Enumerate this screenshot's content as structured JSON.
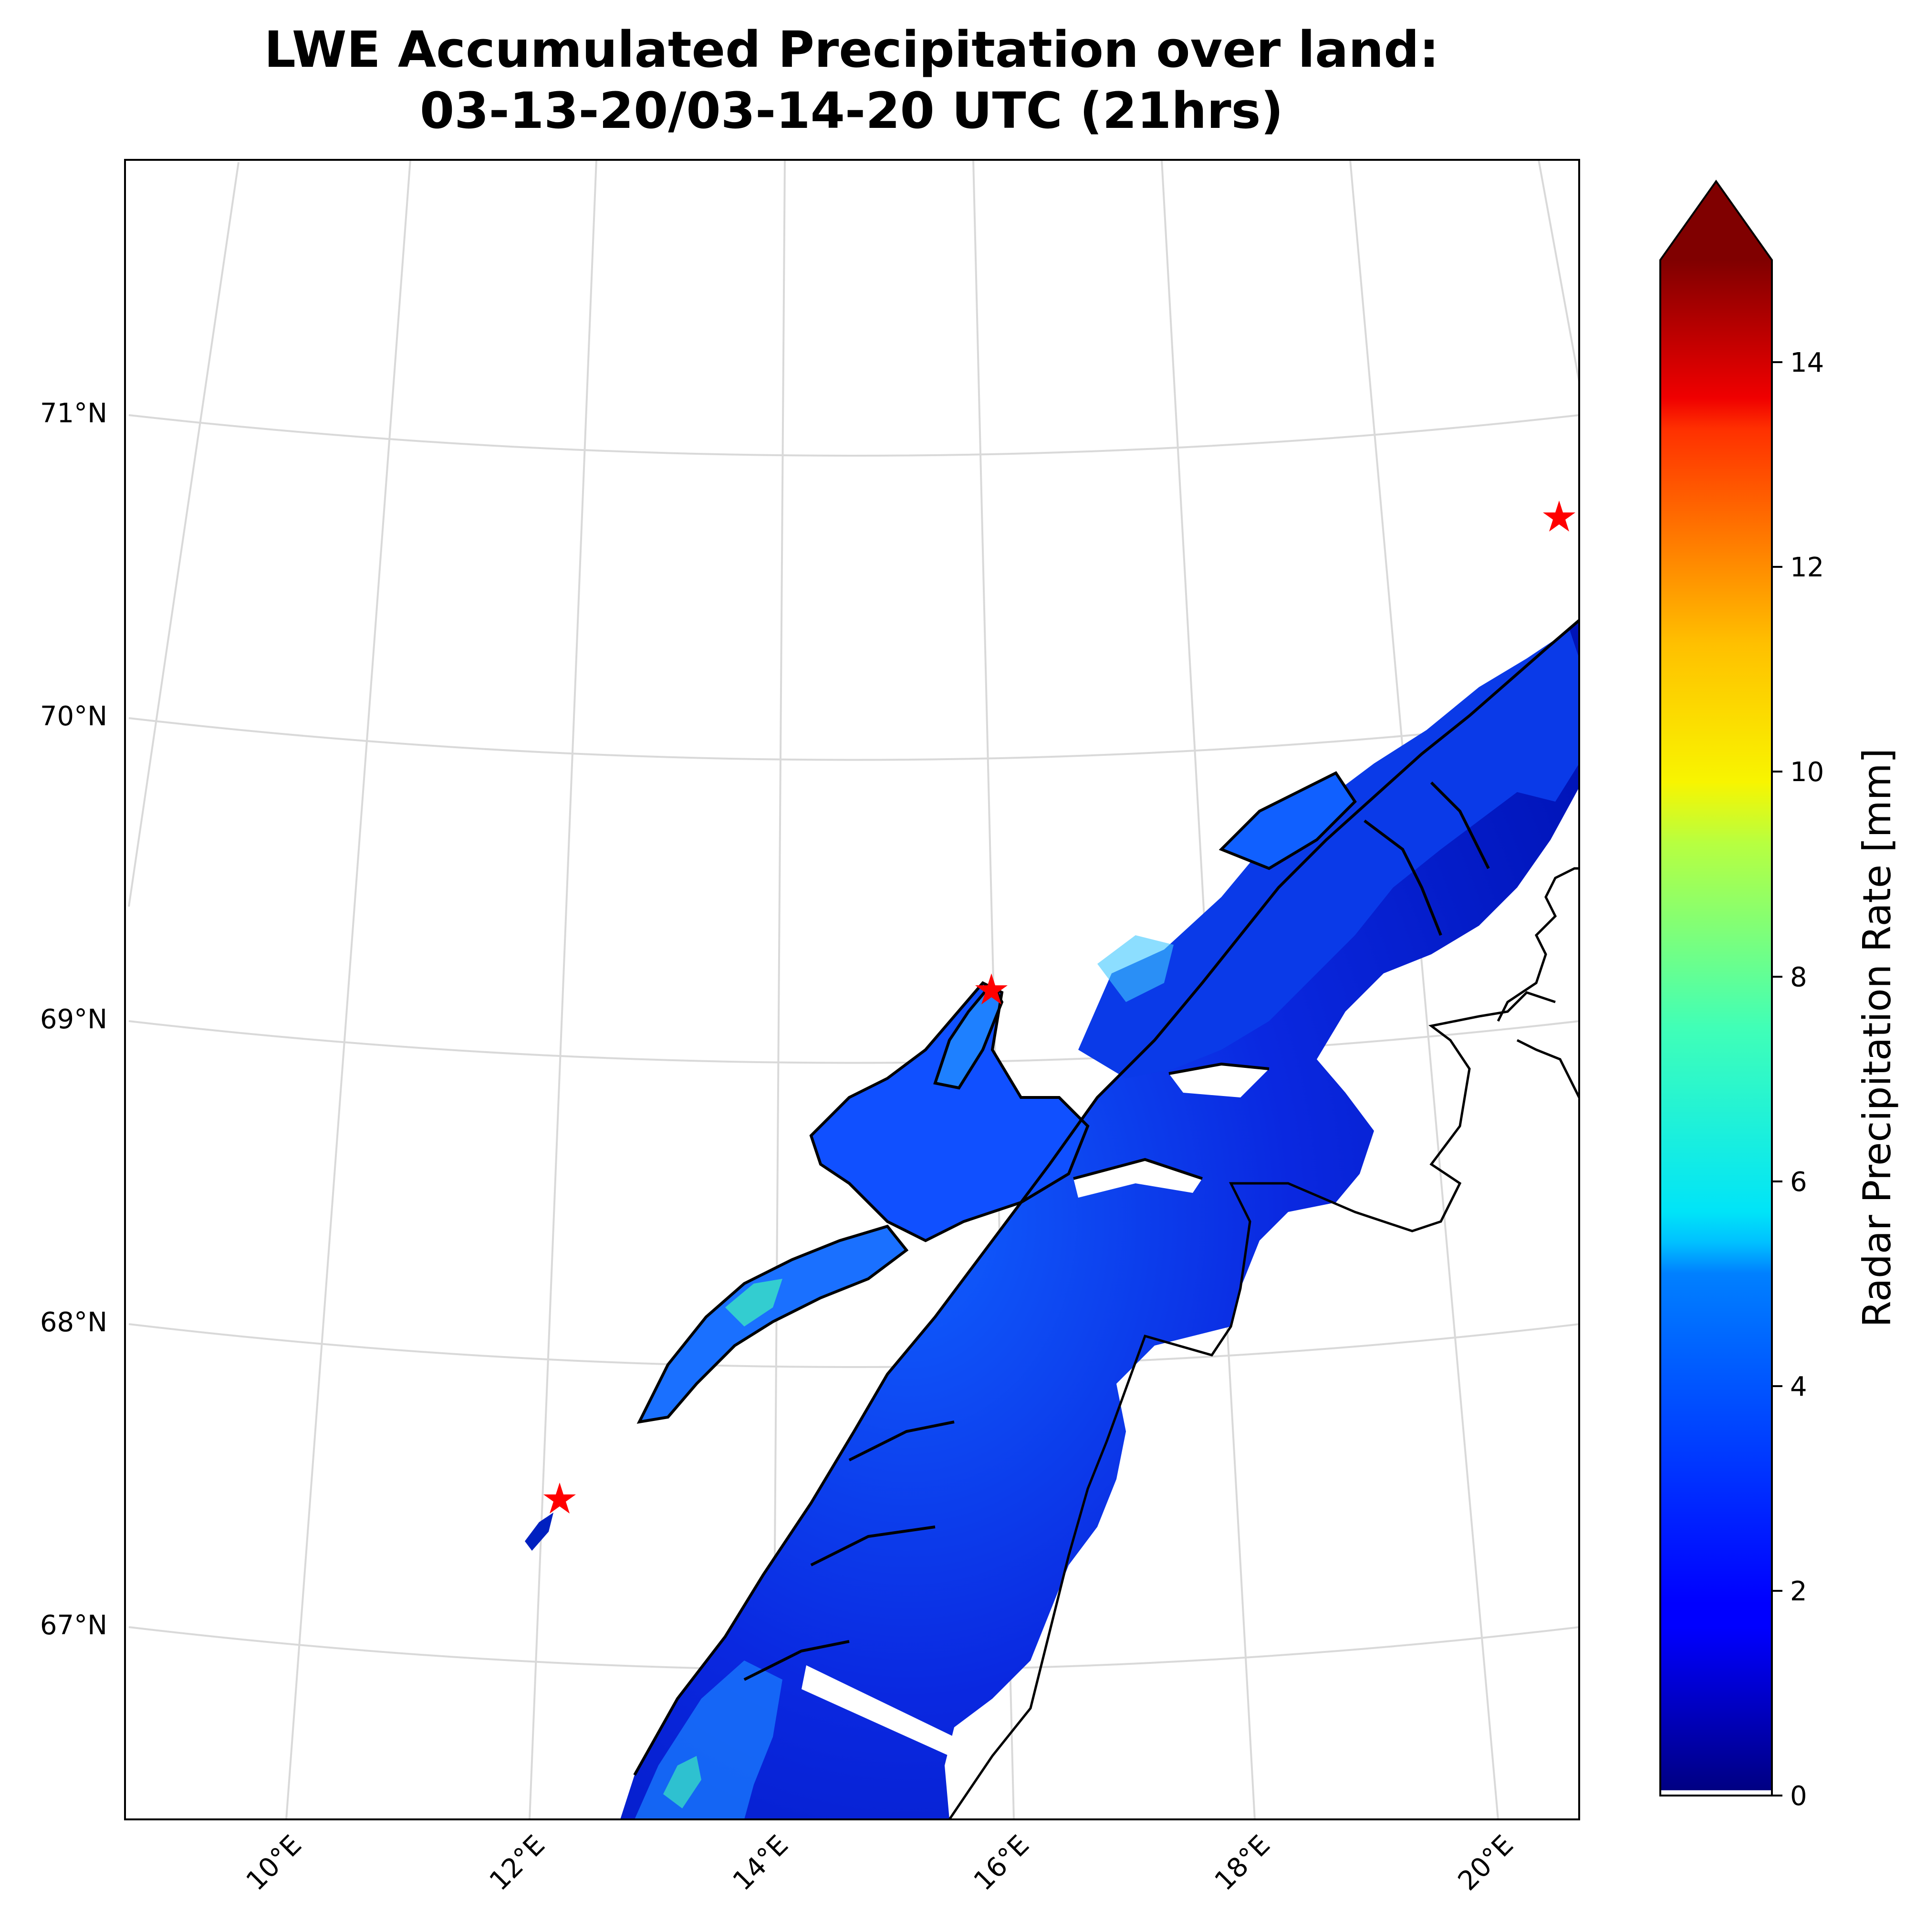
{
  "title": {
    "line1": "LWE Accumulated Precipitation over land:",
    "line2": "03-13-20/03-14-20 UTC (21hrs)"
  },
  "map": {
    "lat_labels": [
      "71°N",
      "70°N",
      "69°N",
      "68°N",
      "67°N"
    ],
    "lon_labels": [
      "10°E",
      "12°E",
      "14°E",
      "16°E",
      "18°E",
      "20°E"
    ],
    "gridlines": true,
    "markers": [
      {
        "name": "station-1",
        "lon": 12.1,
        "lat": 67.5,
        "color": "#ff0000"
      },
      {
        "name": "station-2",
        "lon": 16.1,
        "lat": 69.3,
        "color": "#ff0000"
      },
      {
        "name": "station-3",
        "lon": 20.6,
        "lat": 70.9,
        "color": "#ff0000"
      }
    ]
  },
  "colorbar": {
    "label": "Radar Precipitation Rate [mm]",
    "ticks": [
      "0",
      "2",
      "4",
      "6",
      "8",
      "10",
      "12",
      "14"
    ],
    "range": [
      0,
      15
    ],
    "extend": "max",
    "colormap": "jet",
    "under_color": "#ffffff"
  }
}
